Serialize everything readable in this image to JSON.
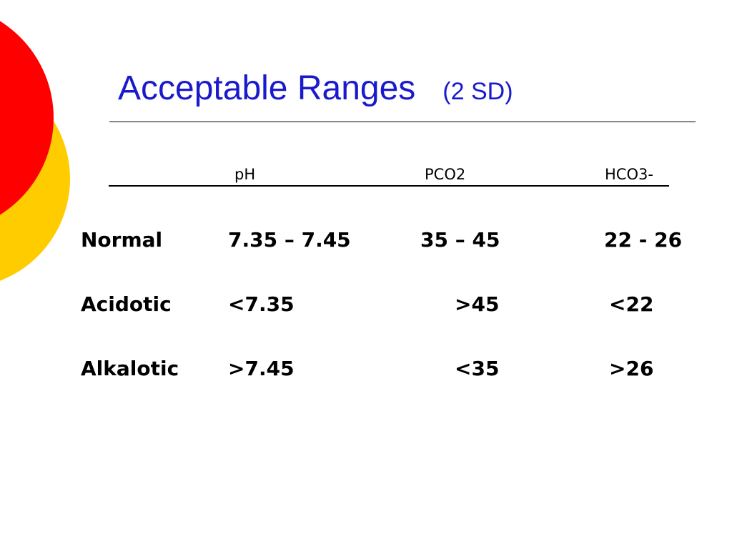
{
  "slide": {
    "title": "Acceptable Ranges",
    "subtitle": "(2 SD)",
    "colors": {
      "title": "#1a1acc",
      "circle_red": "#ff0000",
      "circle_yellow": "#ffcc00"
    }
  },
  "table": {
    "headers": [
      "pH",
      "PCO2",
      "HCO3-"
    ],
    "rows": [
      {
        "label": "Normal",
        "values": [
          "7.35 – 7.45",
          "35 – 45",
          "22 - 26"
        ]
      },
      {
        "label": "Acidotic",
        "values": [
          "<7.35",
          ">45",
          "<22"
        ]
      },
      {
        "label": "Alkalotic",
        "values": [
          ">7.45",
          "<35",
          ">26"
        ]
      }
    ]
  }
}
